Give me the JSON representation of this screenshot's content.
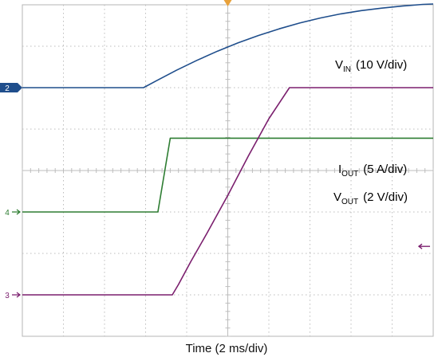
{
  "chart_data": {
    "type": "line",
    "xlabel": "Time (2 ms/div)",
    "divisions": {
      "x": 10,
      "y": 8
    },
    "xlim": [
      0,
      20
    ],
    "x_unit": "ms",
    "grid": true,
    "trigger_marker": "top-center",
    "series": [
      {
        "name": "V_IN",
        "label": {
          "main": "V",
          "sub": "IN",
          "scale": "(10 V/div)"
        },
        "color": "#1f4e8c",
        "channel": "2",
        "volts_per_div": 10,
        "unit": "V",
        "ground_div": 2.0,
        "x": [
          0,
          5.9,
          6.5,
          7.5,
          8.5,
          9.5,
          10.5,
          11.5,
          12.5,
          13.5,
          14.5,
          15.5,
          16.5,
          17.5,
          18.5,
          19.5,
          20
        ],
        "y": [
          0,
          0,
          1.6,
          4.2,
          6.6,
          8.8,
          10.8,
          12.6,
          14.2,
          15.6,
          16.8,
          17.8,
          18.6,
          19.2,
          19.7,
          20.1,
          20.2
        ]
      },
      {
        "name": "I_OUT",
        "label": {
          "main": "I",
          "sub": "OUT",
          "scale": "(5 A/div)"
        },
        "color": "#2e7d32",
        "channel": "4",
        "amps_per_div": 5,
        "unit": "A",
        "ground_div": -1.0,
        "x": [
          0,
          6.6,
          7.2,
          7.35,
          20
        ],
        "y": [
          0,
          0,
          8.9,
          8.9,
          8.9
        ]
      },
      {
        "name": "V_OUT",
        "label": {
          "main": "V",
          "sub": "OUT",
          "scale": "(2 V/div)"
        },
        "color": "#7b1f6e",
        "channel": "3",
        "volts_per_div": 2,
        "unit": "V",
        "ground_div": -3.0,
        "x": [
          0,
          7.3,
          7.6,
          8.2,
          9.0,
          10.0,
          11.0,
          12.0,
          13.0,
          14.0,
          20
        ],
        "y": [
          0,
          0,
          0.5,
          1.6,
          3.0,
          4.8,
          6.7,
          8.5,
          10.0,
          10.0,
          10.0
        ]
      }
    ]
  }
}
